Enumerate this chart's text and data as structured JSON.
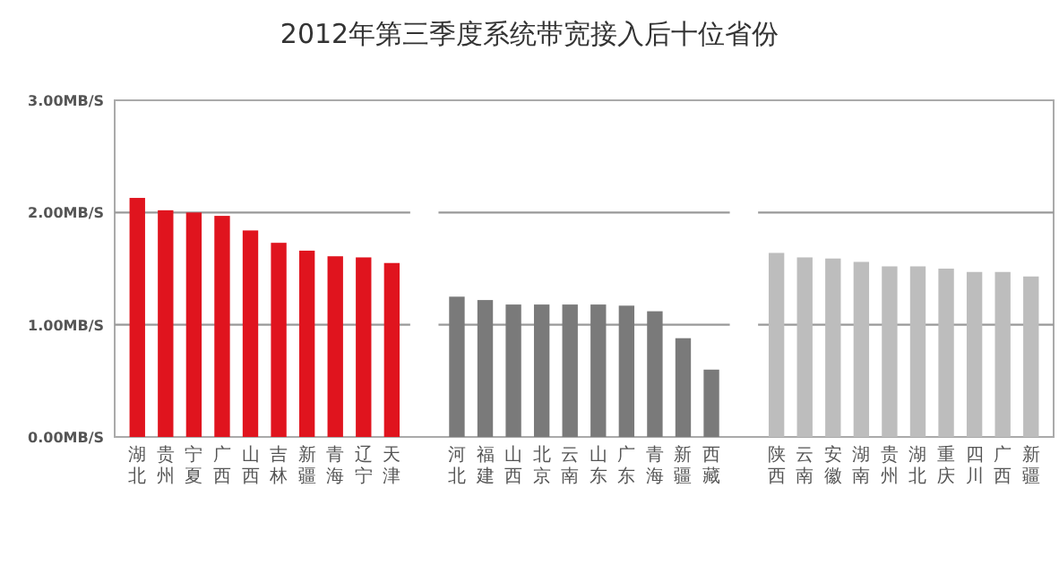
{
  "chart_data": {
    "type": "bar",
    "title": "2012年第三季度系统带宽接入后十位省份",
    "categories": [
      "湖北",
      "贵州",
      "宁夏",
      "广西",
      "山西",
      "吉林",
      "新疆",
      "青海",
      "辽宁",
      "天津",
      "河北",
      "福建",
      "山西",
      "北京",
      "云南",
      "山东",
      "广东",
      "青海",
      "新疆",
      "西藏",
      "陕西",
      "云南",
      "安徽",
      "湖南",
      "贵州",
      "湖北",
      "重庆",
      "四川",
      "广西",
      "新疆"
    ],
    "series": [
      {
        "color": "#e0141e",
        "values": [
          2.13,
          2.02,
          2.0,
          1.97,
          1.84,
          1.73,
          1.66,
          1.61,
          1.6,
          1.55,
          null,
          null,
          null,
          null,
          null,
          null,
          null,
          null,
          null,
          null,
          null,
          null,
          null,
          null,
          null,
          null,
          null,
          null,
          null,
          null
        ]
      },
      {
        "color": "#7a7a7a",
        "values": [
          null,
          null,
          null,
          null,
          null,
          null,
          null,
          null,
          null,
          null,
          1.25,
          1.22,
          1.18,
          1.18,
          1.18,
          1.18,
          1.17,
          1.12,
          0.88,
          0.6,
          null,
          null,
          null,
          null,
          null,
          null,
          null,
          null,
          null,
          null
        ]
      },
      {
        "color": "#bdbdbd",
        "values": [
          null,
          null,
          null,
          null,
          null,
          null,
          null,
          null,
          null,
          null,
          null,
          null,
          null,
          null,
          null,
          null,
          null,
          null,
          null,
          null,
          1.64,
          1.6,
          1.59,
          1.56,
          1.52,
          1.52,
          1.5,
          1.47,
          1.47,
          1.43
        ]
      }
    ],
    "ylim": [
      0,
      3
    ],
    "yticks": [
      {
        "value": 0,
        "label": "0.00MB/S"
      },
      {
        "value": 1,
        "label": "1.00MB/S"
      },
      {
        "value": 2,
        "label": "2.00MB/S"
      },
      {
        "value": 3,
        "label": "3.00MB/S"
      }
    ],
    "grid": "y"
  }
}
